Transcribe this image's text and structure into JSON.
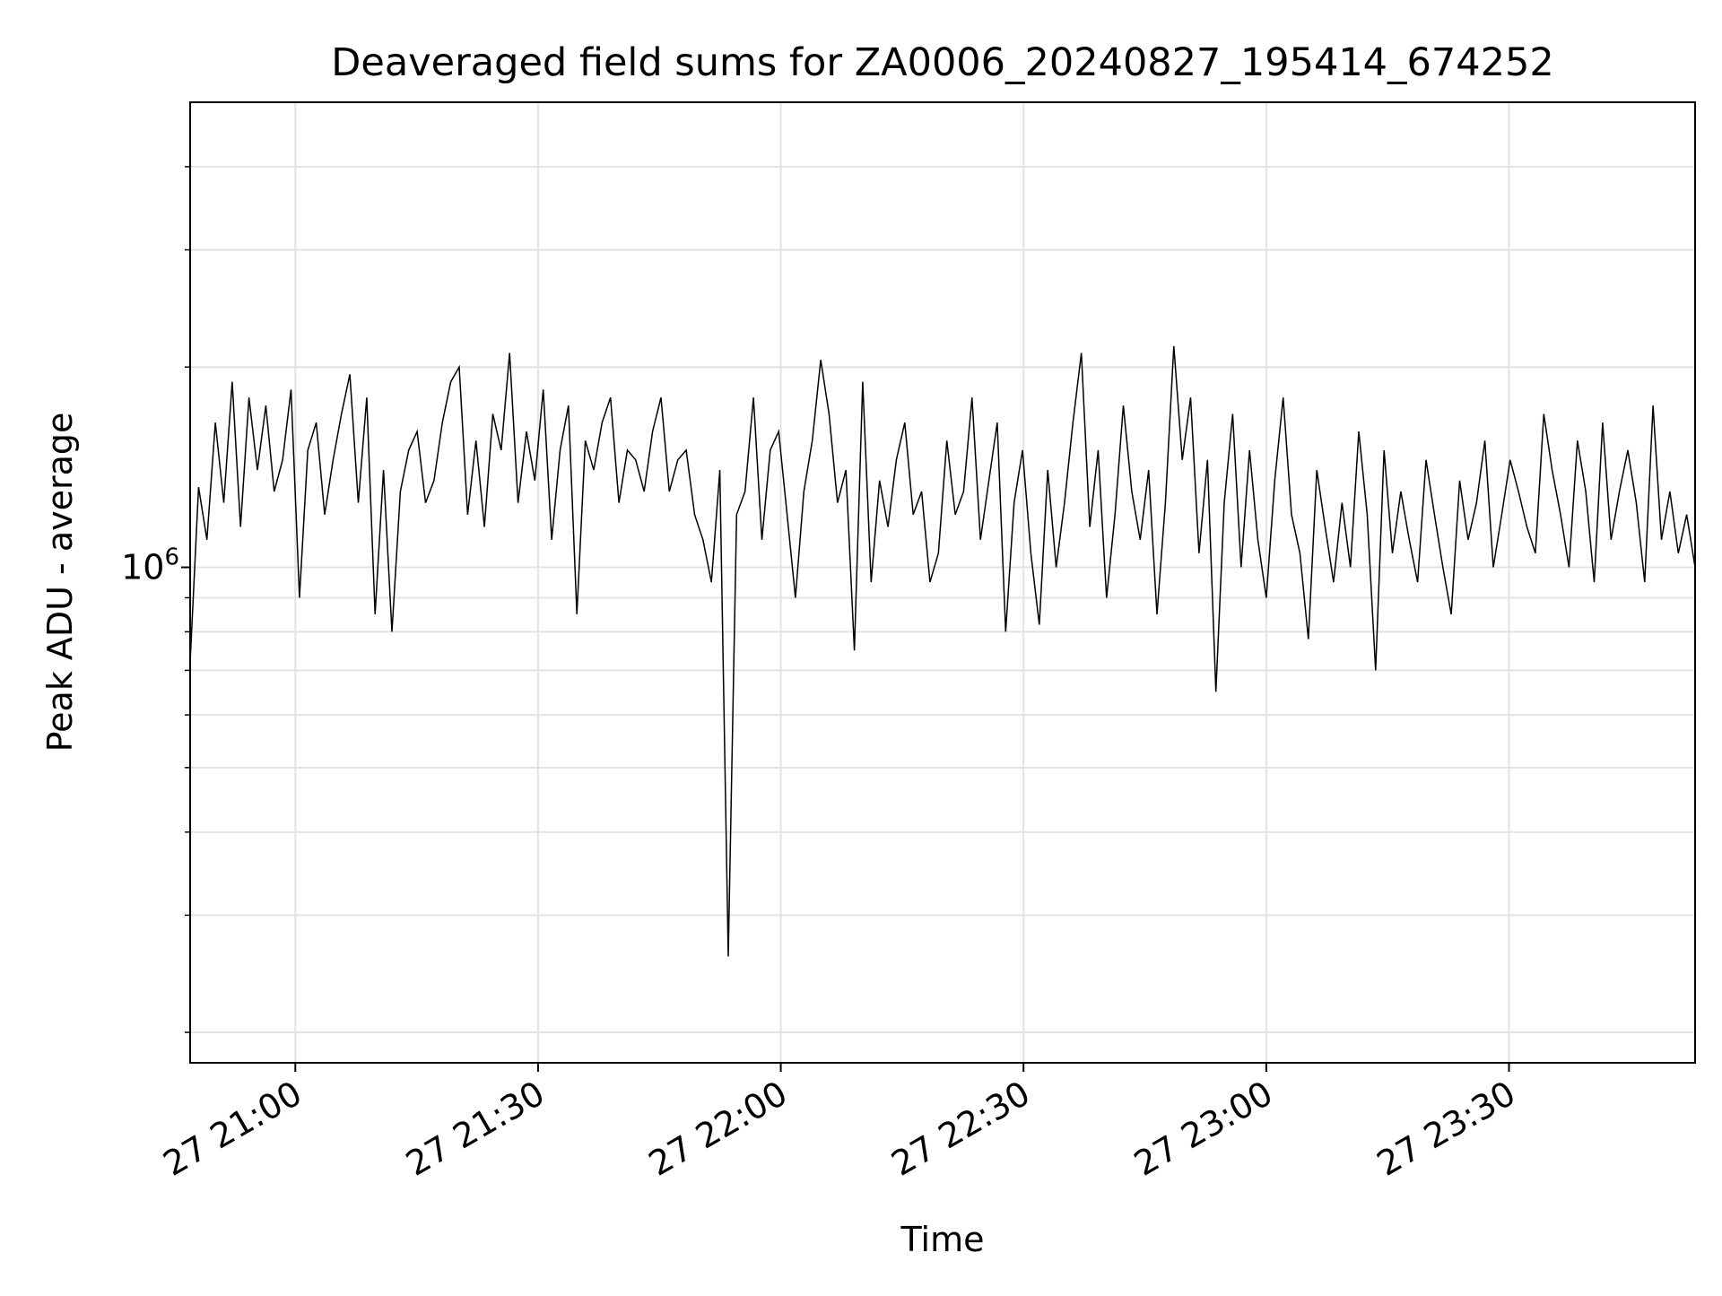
{
  "chart_data": {
    "type": "line",
    "title": "Deaveraged field sums for ZA0006_20240827_195414_674252",
    "xlabel": "Time",
    "ylabel": "Peak ADU - average",
    "x_axis": {
      "kind": "datetime",
      "range": [
        "2024-08-27 20:47",
        "2024-08-27 23:53"
      ],
      "ticks": [
        "2024-08-27 21:00",
        "2024-08-27 21:30",
        "2024-08-27 22:00",
        "2024-08-27 22:30",
        "2024-08-27 23:00",
        "2024-08-27 23:30"
      ],
      "tick_labels": [
        "27 21:00",
        "27 21:30",
        "27 22:00",
        "27 22:30",
        "27 23:00",
        "27 23:30"
      ]
    },
    "y_axis": {
      "scale": "log",
      "range": [
        180000,
        5000000
      ],
      "major_ticks": [
        1000000
      ],
      "major_tick_labels": [
        "10^6"
      ],
      "minor_ticks": [
        200000,
        300000,
        400000,
        500000,
        600000,
        700000,
        800000,
        900000,
        2000000,
        3000000,
        4000000
      ]
    },
    "grid": true,
    "legend": "none",
    "series": [
      {
        "color": "#000000",
        "x_start": "2024-08-27 20:47",
        "x_end": "2024-08-27 23:53",
        "values": [
          720000,
          1320000,
          1100000,
          1650000,
          1250000,
          1900000,
          1150000,
          1800000,
          1400000,
          1750000,
          1300000,
          1450000,
          1850000,
          900000,
          1500000,
          1650000,
          1200000,
          1450000,
          1700000,
          1950000,
          1250000,
          1800000,
          850000,
          1400000,
          800000,
          1300000,
          1500000,
          1600000,
          1250000,
          1350000,
          1650000,
          1900000,
          2000000,
          1200000,
          1550000,
          1150000,
          1700000,
          1500000,
          2100000,
          1250000,
          1600000,
          1350000,
          1850000,
          1100000,
          1500000,
          1750000,
          850000,
          1550000,
          1400000,
          1650000,
          1800000,
          1250000,
          1500000,
          1450000,
          1300000,
          1600000,
          1800000,
          1300000,
          1450000,
          1500000,
          1200000,
          1100000,
          950000,
          1400000,
          260000,
          1200000,
          1300000,
          1800000,
          1100000,
          1500000,
          1600000,
          1200000,
          900000,
          1300000,
          1550000,
          2050000,
          1700000,
          1250000,
          1400000,
          750000,
          1900000,
          950000,
          1350000,
          1150000,
          1450000,
          1650000,
          1200000,
          1300000,
          950000,
          1050000,
          1550000,
          1200000,
          1300000,
          1800000,
          1100000,
          1350000,
          1650000,
          800000,
          1250000,
          1500000,
          1050000,
          820000,
          1400000,
          1000000,
          1250000,
          1650000,
          2100000,
          1150000,
          1500000,
          900000,
          1200000,
          1750000,
          1300000,
          1100000,
          1400000,
          850000,
          1250000,
          2150000,
          1450000,
          1800000,
          1050000,
          1450000,
          650000,
          1250000,
          1700000,
          1000000,
          1500000,
          1100000,
          900000,
          1350000,
          1800000,
          1200000,
          1050000,
          780000,
          1400000,
          1150000,
          950000,
          1250000,
          1000000,
          1600000,
          1200000,
          700000,
          1500000,
          1050000,
          1300000,
          1100000,
          950000,
          1450000,
          1200000,
          1000000,
          850000,
          1350000,
          1100000,
          1250000,
          1550000,
          1000000,
          1200000,
          1450000,
          1300000,
          1150000,
          1050000,
          1700000,
          1400000,
          1200000,
          1000000,
          1550000,
          1300000,
          950000,
          1650000,
          1100000,
          1300000,
          1500000,
          1250000,
          950000,
          1750000,
          1100000,
          1300000,
          1050000,
          1200000,
          1000000
        ]
      }
    ]
  }
}
